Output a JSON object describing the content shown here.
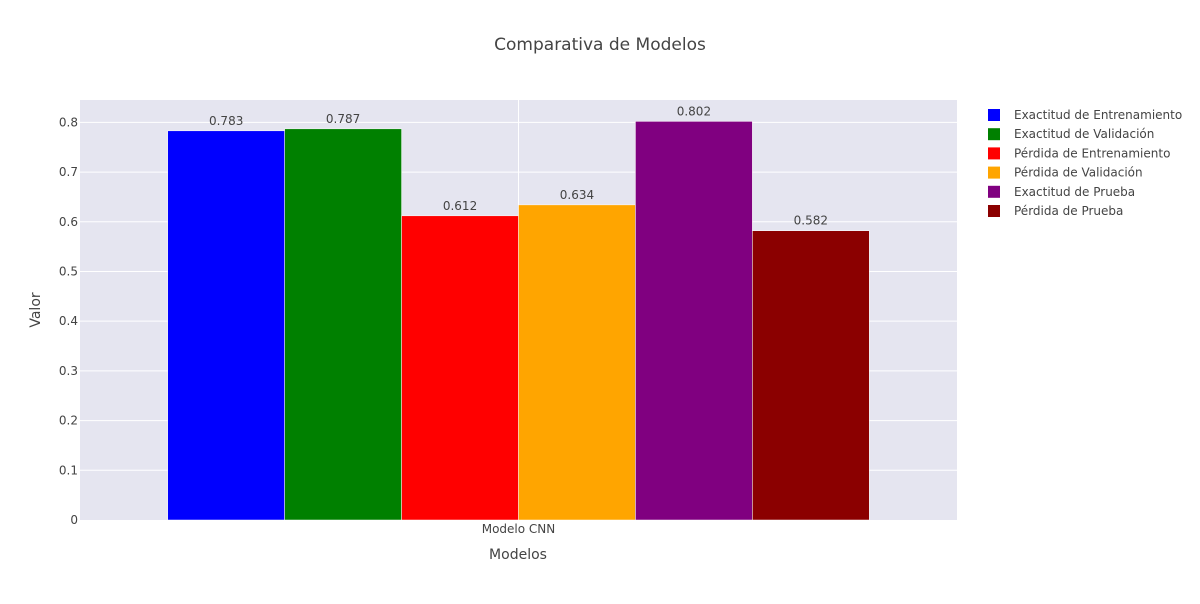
{
  "chart_data": {
    "type": "bar",
    "title": "Comparativa de Modelos",
    "xlabel": "Modelos",
    "ylabel": "Valor",
    "categories": [
      "Modelo CNN"
    ],
    "ylim": [
      0,
      0.845
    ],
    "yticks": [
      0,
      0.1,
      0.2,
      0.3,
      0.4,
      0.5,
      0.6,
      0.7,
      0.8
    ],
    "ytick_labels": [
      "0",
      "0.1",
      "0.2",
      "0.3",
      "0.4",
      "0.5",
      "0.6",
      "0.7",
      "0.8"
    ],
    "grid": true,
    "legend_position": "right",
    "plot_background": "#e5e5f0",
    "series": [
      {
        "name": "Exactitud de Entrenamiento",
        "values": [
          0.783
        ],
        "label": "0.783",
        "color": "#0000ff"
      },
      {
        "name": "Exactitud de Validación",
        "values": [
          0.787
        ],
        "label": "0.787",
        "color": "#008000"
      },
      {
        "name": "Pérdida de Entrenamiento",
        "values": [
          0.612
        ],
        "label": "0.612",
        "color": "#ff0000"
      },
      {
        "name": "Pérdida de Validación",
        "values": [
          0.634
        ],
        "label": "0.634",
        "color": "#ffa500"
      },
      {
        "name": "Exactitud de Prueba",
        "values": [
          0.802
        ],
        "label": "0.802",
        "color": "#800080"
      },
      {
        "name": "Pérdida de Prueba",
        "values": [
          0.582
        ],
        "label": "0.582",
        "color": "#8b0000"
      }
    ]
  }
}
